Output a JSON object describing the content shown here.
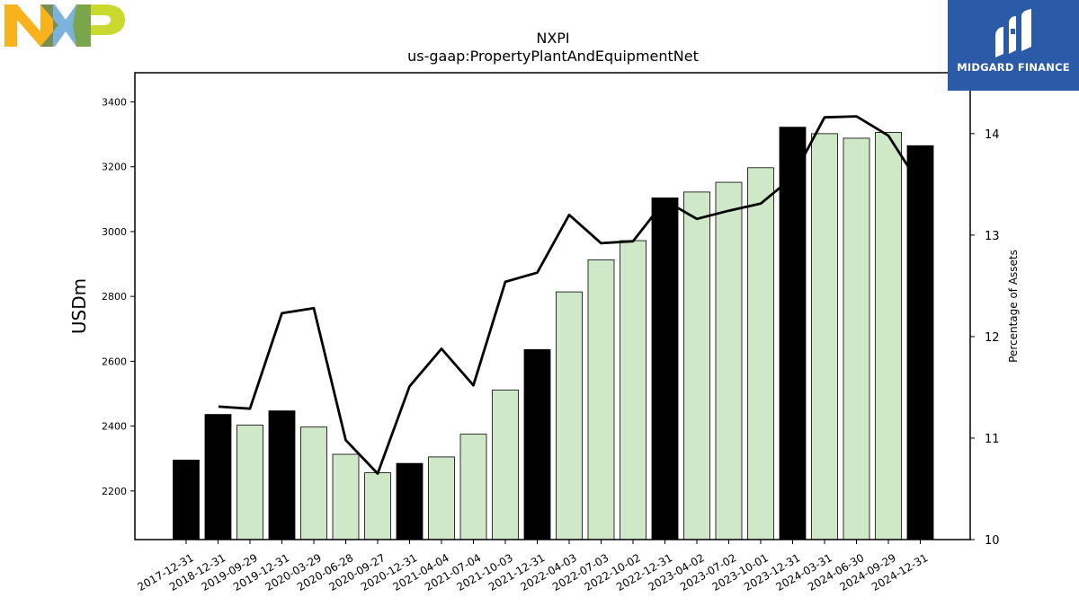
{
  "logos": {
    "left": "NXP",
    "right": "MIDGARD FINANCE"
  },
  "colors": {
    "annual_bar": "#000000",
    "quarter_bar": "#cfe9c8",
    "line": "#000000",
    "nxp_yellow": "#f9b21b",
    "nxp_blue": "#7bb2de",
    "nxp_green": "#c9d92d",
    "midgard_blue": "#2b5aa8"
  },
  "chart_data": {
    "type": "bar",
    "title": "NXPI",
    "subtitle": "us-gaap:PropertyPlantAndEquipmentNet",
    "ylabel": "USDm",
    "y2label": "Percentage of Assets",
    "ylim": [
      2050,
      3490
    ],
    "y2lim": [
      10,
      14.6
    ],
    "yticks": [
      2200,
      2400,
      2600,
      2800,
      3000,
      3200,
      3400
    ],
    "y2ticks": [
      10,
      11,
      12,
      13,
      14
    ],
    "categories": [
      "2017-12-31",
      "2018-12-31",
      "2019-09-29",
      "2019-12-31",
      "2020-03-29",
      "2020-06-28",
      "2020-09-27",
      "2020-12-31",
      "2021-04-04",
      "2021-07-04",
      "2021-10-03",
      "2021-12-31",
      "2022-04-03",
      "2022-07-03",
      "2022-10-02",
      "2022-12-31",
      "2023-04-02",
      "2023-07-02",
      "2023-10-01",
      "2023-12-31",
      "2024-03-31",
      "2024-06-30",
      "2024-09-29",
      "2024-12-31"
    ],
    "series": [
      {
        "type": "bar",
        "values": [
          2295,
          2436,
          2403,
          2447,
          2397,
          2313,
          2256,
          2285,
          2305,
          2375,
          2511,
          2636,
          2814,
          2913,
          2972,
          3104,
          3122,
          3152,
          3197,
          3322,
          3302,
          3288,
          3306,
          3265
        ],
        "annual": [
          true,
          true,
          false,
          true,
          false,
          false,
          false,
          true,
          false,
          false,
          false,
          true,
          false,
          false,
          false,
          true,
          false,
          false,
          false,
          true,
          false,
          false,
          false,
          true
        ]
      },
      {
        "type": "line",
        "axis": "right",
        "values": [
          null,
          11.31,
          11.29,
          12.23,
          12.28,
          10.98,
          10.65,
          11.51,
          11.88,
          11.52,
          12.54,
          12.63,
          13.2,
          12.92,
          12.94,
          13.34,
          13.16,
          13.24,
          13.31,
          13.57,
          14.16,
          14.17,
          13.98,
          13.49
        ]
      }
    ]
  }
}
